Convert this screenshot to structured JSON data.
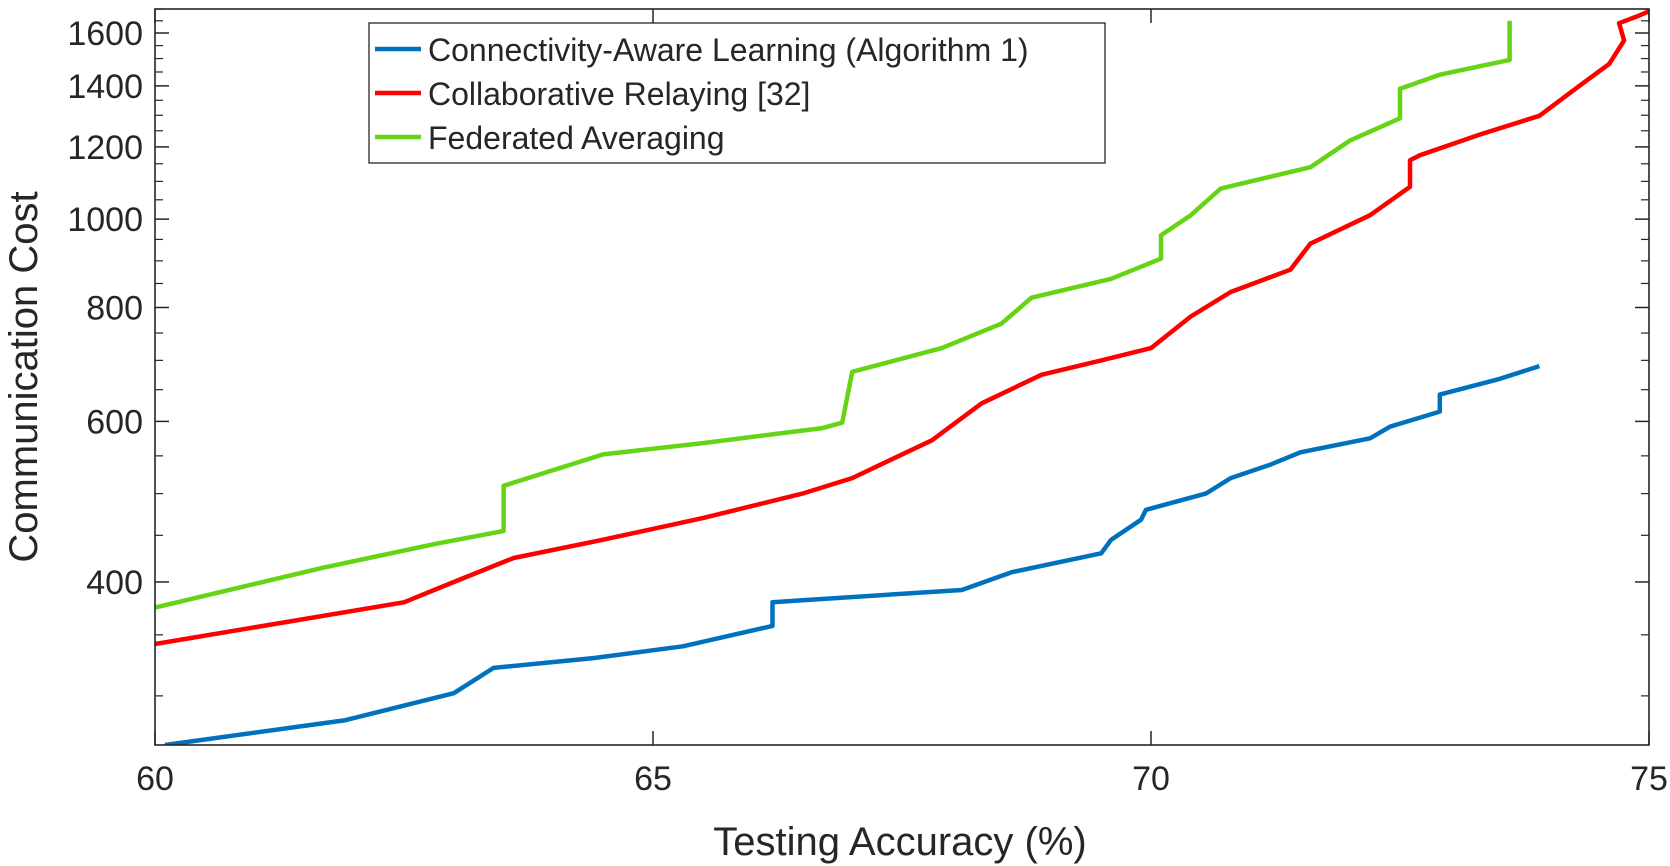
{
  "chart_data": {
    "type": "line",
    "title": "",
    "xlabel": "Testing Accuracy (%)",
    "ylabel": "Communication Cost",
    "xlim": [
      60,
      75
    ],
    "ylim": [
      265,
      1700
    ],
    "yscale": "log",
    "grid": false,
    "legend_position": "top-center",
    "x_ticks": [
      60,
      65,
      70,
      75
    ],
    "x_tick_labels": [
      "60",
      "65",
      "70",
      "75"
    ],
    "y_ticks": [
      400,
      600,
      800,
      1000,
      1200,
      1400,
      1600
    ],
    "y_tick_labels": [
      "400",
      "600",
      "800",
      "1000",
      "1200",
      "1400",
      "1600"
    ],
    "y_minor_ticks": [
      300,
      350,
      450,
      500,
      550,
      650,
      700,
      750,
      850,
      900,
      950,
      1050,
      1100,
      1150,
      1250,
      1300,
      1350,
      1450,
      1500,
      1550,
      1650,
      1700
    ],
    "series": [
      {
        "name": "Connectivity-Aware Learning (Algorithm 1)",
        "color": "#0072BD",
        "points": [
          [
            60.1,
            265
          ],
          [
            61.9,
            282
          ],
          [
            63.0,
            302
          ],
          [
            63.4,
            322
          ],
          [
            64.4,
            330
          ],
          [
            65.3,
            340
          ],
          [
            66.2,
            358
          ],
          [
            66.2,
            380
          ],
          [
            66.5,
            382
          ],
          [
            68.1,
            392
          ],
          [
            68.6,
            410
          ],
          [
            69.5,
            430
          ],
          [
            69.6,
            445
          ],
          [
            69.9,
            468
          ],
          [
            69.95,
            480
          ],
          [
            70.55,
            500
          ],
          [
            70.8,
            520
          ],
          [
            71.2,
            538
          ],
          [
            71.5,
            555
          ],
          [
            72.2,
            575
          ],
          [
            72.4,
            592
          ],
          [
            72.9,
            615
          ],
          [
            72.9,
            642
          ],
          [
            73.5,
            668
          ],
          [
            73.9,
            690
          ]
        ]
      },
      {
        "name": "Collaborative Relaying [32]",
        "color": "#FF0000",
        "points": [
          [
            60.0,
            342
          ],
          [
            62.5,
            380
          ],
          [
            63.0,
            400
          ],
          [
            63.6,
            425
          ],
          [
            64.5,
            445
          ],
          [
            65.5,
            470
          ],
          [
            66.5,
            500
          ],
          [
            67.0,
            520
          ],
          [
            67.8,
            572
          ],
          [
            68.3,
            628
          ],
          [
            68.9,
            675
          ],
          [
            69.5,
            700
          ],
          [
            70.0,
            722
          ],
          [
            70.4,
            782
          ],
          [
            70.8,
            832
          ],
          [
            71.4,
            880
          ],
          [
            71.6,
            940
          ],
          [
            72.2,
            1010
          ],
          [
            72.6,
            1085
          ],
          [
            72.6,
            1160
          ],
          [
            72.7,
            1175
          ],
          [
            73.3,
            1238
          ],
          [
            73.9,
            1298
          ],
          [
            74.3,
            1400
          ],
          [
            74.6,
            1480
          ],
          [
            74.75,
            1570
          ],
          [
            74.7,
            1640
          ],
          [
            74.9,
            1672
          ],
          [
            75.0,
            1690
          ]
        ]
      },
      {
        "name": "Federated Averaging",
        "color": "#64D414",
        "points": [
          [
            60.0,
            375
          ],
          [
            61.7,
            415
          ],
          [
            62.8,
            440
          ],
          [
            63.5,
            455
          ],
          [
            63.5,
            510
          ],
          [
            64.5,
            552
          ],
          [
            65.5,
            568
          ],
          [
            66.7,
            590
          ],
          [
            66.9,
            598
          ],
          [
            67.0,
            680
          ],
          [
            67.9,
            722
          ],
          [
            68.5,
            768
          ],
          [
            68.8,
            820
          ],
          [
            69.6,
            860
          ],
          [
            70.1,
            905
          ],
          [
            70.1,
            960
          ],
          [
            70.4,
            1010
          ],
          [
            70.7,
            1080
          ],
          [
            71.6,
            1140
          ],
          [
            72.0,
            1220
          ],
          [
            72.5,
            1290
          ],
          [
            72.5,
            1390
          ],
          [
            72.9,
            1440
          ],
          [
            73.6,
            1495
          ],
          [
            73.6,
            1650
          ]
        ]
      }
    ]
  }
}
